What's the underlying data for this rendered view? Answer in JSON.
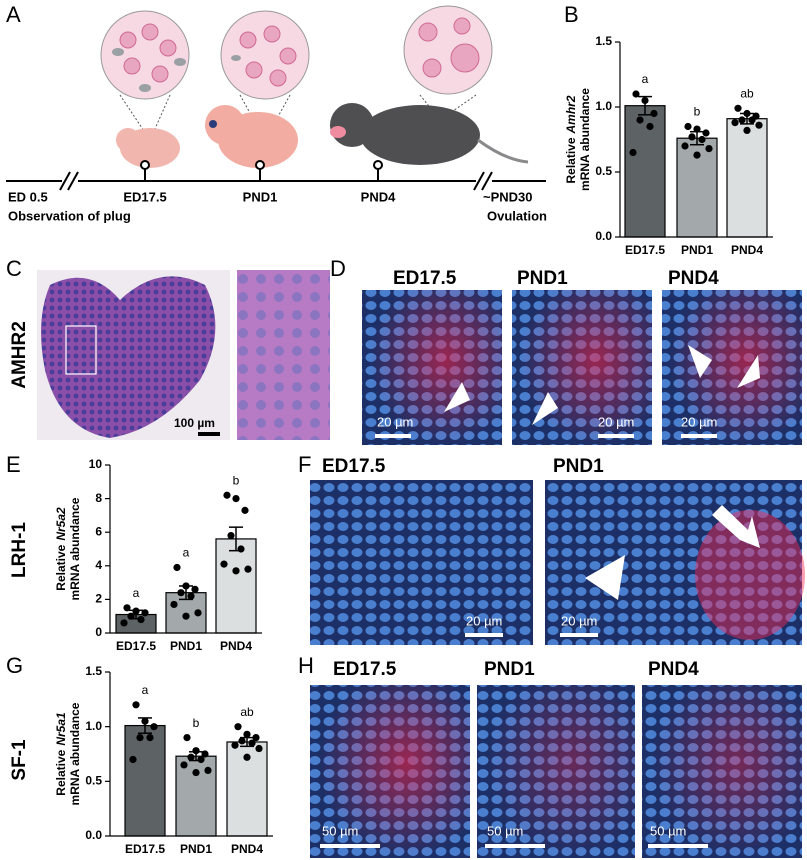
{
  "panel_letters": [
    "A",
    "B",
    "C",
    "D",
    "E",
    "F",
    "G",
    "H"
  ],
  "timeline": {
    "start": "ED 0.5",
    "start_note": "Observation of plug",
    "stages": [
      "ED17.5",
      "PND1",
      "PND4"
    ],
    "end": "~PND30",
    "end_note": "Ovulation"
  },
  "panel_c": {
    "row_label": "AMHR2",
    "scale": "100 µm"
  },
  "panel_d": {
    "titles": [
      "ED17.5",
      "PND1",
      "PND4"
    ],
    "scales": [
      "20 µm",
      "20 µm",
      "20 µm"
    ]
  },
  "panel_e": {
    "row_label": "LRH-1"
  },
  "panel_f": {
    "titles": [
      "ED17.5",
      "PND1"
    ],
    "scales": [
      "20 µm",
      "20 µm"
    ]
  },
  "panel_g": {
    "row_label": "SF-1"
  },
  "panel_h": {
    "titles": [
      "ED17.5",
      "PND1",
      "PND4"
    ],
    "scales": [
      "50 µm",
      "50 µm",
      "50 µm"
    ]
  },
  "chart_data": [
    {
      "type": "bar",
      "ylabel_prefix": "Relative",
      "ylabel_gene": "Amhr2",
      "ylabel_suffix": "mRNA abundance",
      "categories": [
        "ED17.5",
        "PND1",
        "PND4"
      ],
      "values": [
        1.01,
        0.76,
        0.91
      ],
      "errors": [
        0.07,
        0.05,
        0.04
      ],
      "points": [
        [
          1.1,
          1.05,
          0.95,
          0.9,
          0.85,
          0.65
        ],
        [
          0.85,
          0.83,
          0.8,
          0.77,
          0.75,
          0.7,
          0.68,
          0.63
        ],
        [
          0.99,
          0.95,
          0.93,
          0.9,
          0.9,
          0.88,
          0.86,
          0.82
        ]
      ],
      "annotations": [
        "a",
        "b",
        "ab"
      ],
      "colors": [
        "#5d6364",
        "#a3a9aa",
        "#dcdfdf"
      ],
      "ylim": [
        0,
        1.5
      ],
      "yticks": [
        {
          "value": 0,
          "label": "0.0"
        },
        {
          "value": 0.5,
          "label": "0.5"
        },
        {
          "value": 1,
          "label": "1.0"
        },
        {
          "value": 1.5,
          "label": "1.5"
        }
      ]
    },
    {
      "type": "bar",
      "ylabel_prefix": "Relative",
      "ylabel_gene": "Nr5a2",
      "ylabel_suffix": "mRNA abundance",
      "categories": [
        "ED17.5",
        "PND1",
        "PND4"
      ],
      "values": [
        1.1,
        2.4,
        5.6
      ],
      "errors": [
        0.25,
        0.4,
        0.7
      ],
      "points": [
        [
          1.5,
          1.3,
          1.2,
          1.0,
          0.8,
          0.6
        ],
        [
          3.9,
          2.8,
          2.6,
          2.4,
          2.2,
          1.7,
          1.2,
          1.0
        ],
        [
          8.2,
          8.0,
          7.3,
          5.8,
          5.0,
          4.1,
          3.8,
          3.7
        ]
      ],
      "annotations": [
        "a",
        "a",
        "b"
      ],
      "colors": [
        "#5d6364",
        "#a3a9aa",
        "#dcdfdf"
      ],
      "ylim": [
        0,
        10
      ],
      "yticks": [
        0,
        2,
        4,
        6,
        8,
        10
      ]
    },
    {
      "type": "bar",
      "ylabel_prefix": "Relative",
      "ylabel_gene": "Nr5a1",
      "ylabel_suffix": "mRNA abundance",
      "categories": [
        "ED17.5",
        "PND1",
        "PND4"
      ],
      "values": [
        1.01,
        0.73,
        0.86
      ],
      "errors": [
        0.07,
        0.04,
        0.04
      ],
      "points": [
        [
          1.2,
          1.05,
          1.0,
          0.9,
          0.9,
          0.7
        ],
        [
          0.9,
          0.78,
          0.75,
          0.72,
          0.7,
          0.65,
          0.6,
          0.58
        ],
        [
          1.0,
          0.93,
          0.9,
          0.87,
          0.85,
          0.83,
          0.8,
          0.72
        ]
      ],
      "annotations": [
        "a",
        "b",
        "ab"
      ],
      "colors": [
        "#5d6364",
        "#a3a9aa",
        "#dcdfdf"
      ],
      "ylim": [
        0,
        1.5
      ],
      "yticks": [
        {
          "value": 0,
          "label": "0.0"
        },
        {
          "value": 0.5,
          "label": "0.5"
        },
        {
          "value": 1,
          "label": "1.0"
        },
        {
          "value": 1.5,
          "label": "1.5"
        }
      ]
    }
  ]
}
